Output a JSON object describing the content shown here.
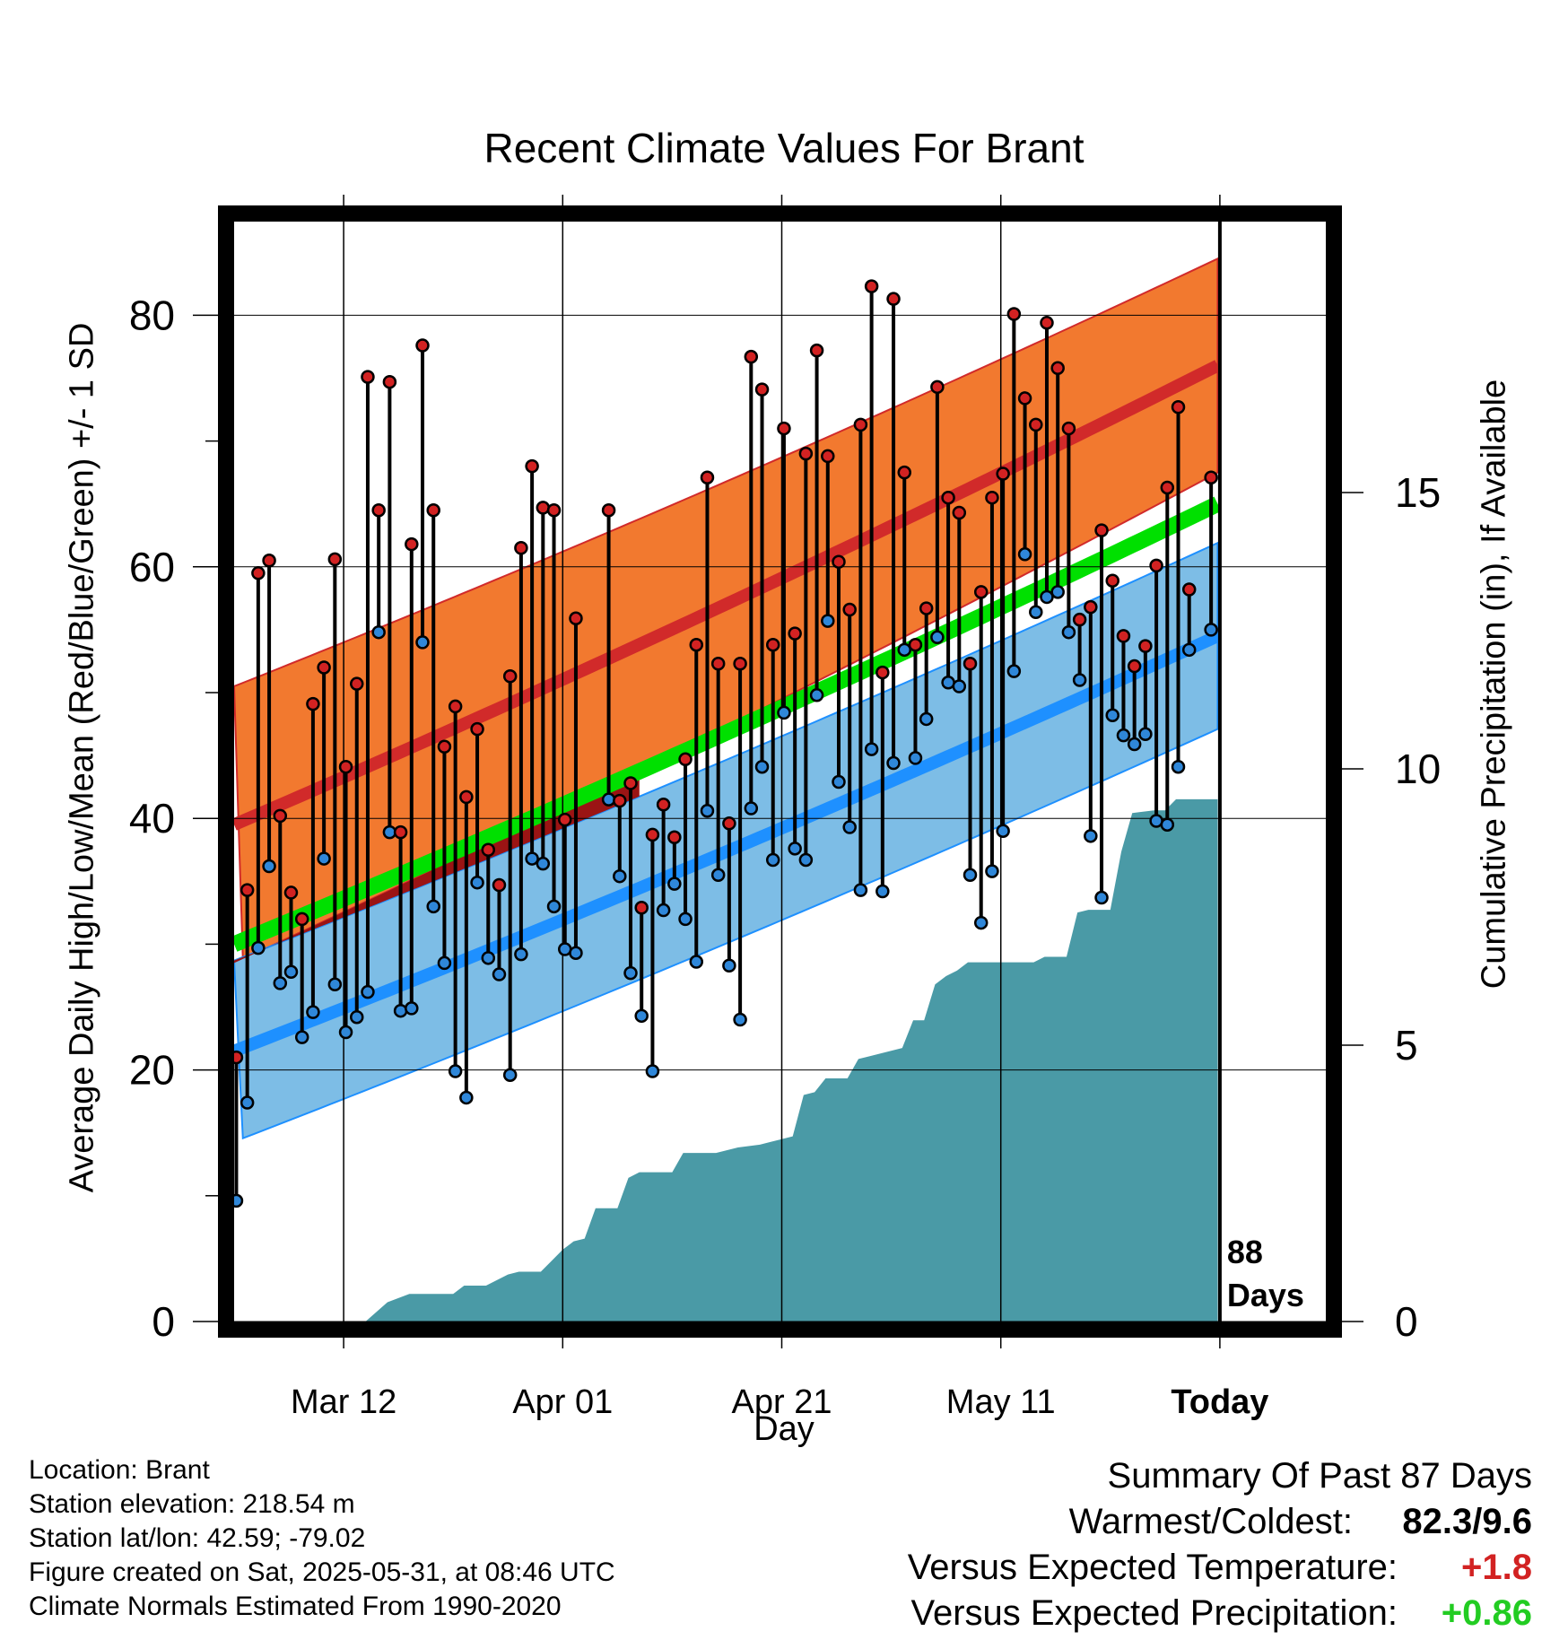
{
  "chart_data": {
    "type": "line",
    "title": "Recent Climate Values For Brant",
    "xlabel": "Day",
    "ylabel": "Average Daily High/Low/Mean (Red/Blue/Green) +/- 1 SD",
    "y2label": "Cumulative Precipitation (in), If Available",
    "x_tick_labels": [
      "Mar 12",
      "Apr 01",
      "Apr 21",
      "May 11",
      "Today"
    ],
    "y_ticks": [
      0,
      20,
      40,
      60,
      80
    ],
    "y2_ticks": [
      0,
      5,
      10,
      15
    ],
    "ylim": [
      0,
      87.5
    ],
    "y2lim": [
      0,
      15
    ],
    "days_annotation": "88\nDays",
    "normals": {
      "high_mean_start": 39.5,
      "high_mean_end": 76,
      "high_sd": 11,
      "low_mean_start": 21.5,
      "low_mean_end": 54.5,
      "low_sd": 7.2,
      "mean_start": 30,
      "mean_end": 65
    },
    "highs": [
      21,
      34.3,
      59.5,
      60.5,
      40.2,
      34.1,
      32,
      49.1,
      52,
      60.6,
      44.1,
      50.7,
      75.1,
      64.5,
      74.7,
      38.9,
      61.8,
      77.6,
      64.5,
      45.7,
      48.9,
      41.7,
      47.1,
      37.5,
      34.7,
      51.3,
      61.5,
      68,
      64.7,
      64.5,
      39.9,
      55.9,
      null,
      null,
      64.5,
      41.4,
      42.8,
      32.9,
      38.7,
      41.1,
      38.5,
      44.7,
      53.8,
      67.1,
      52.3,
      39.6,
      52.3,
      76.7,
      74.1,
      53.8,
      71,
      54.7,
      69,
      77.2,
      68.8,
      60.4,
      56.6,
      71.3,
      82.3,
      51.6,
      81.3,
      67.5,
      53.8,
      56.7,
      74.3,
      65.5,
      64.3,
      52.3,
      58,
      65.5,
      67.4,
      80.1,
      73.4,
      71.3,
      79.4,
      75.8,
      71,
      55.8,
      56.8,
      62.9,
      58.9,
      54.5,
      52.1,
      53.7,
      60.1,
      66.3,
      72.7,
      58.2,
      null,
      67.1
    ],
    "lows": [
      9.6,
      17.4,
      29.7,
      36.2,
      26.9,
      27.8,
      22.6,
      24.6,
      36.8,
      26.8,
      23,
      24.2,
      26.2,
      54.8,
      38.9,
      24.7,
      24.9,
      54,
      33,
      28.5,
      19.9,
      17.8,
      34.9,
      28.9,
      27.6,
      19.6,
      29.2,
      36.8,
      36.4,
      33,
      29.6,
      29.3,
      null,
      null,
      41.5,
      35.4,
      27.7,
      24.3,
      19.9,
      32.7,
      34.8,
      32,
      28.6,
      40.6,
      35.5,
      28.3,
      24,
      40.8,
      44.1,
      36.7,
      48.4,
      37.6,
      36.7,
      49.8,
      55.7,
      42.9,
      39.3,
      34.3,
      45.5,
      34.2,
      44.4,
      53.4,
      44.8,
      47.9,
      54.4,
      50.8,
      50.5,
      35.5,
      31.7,
      35.8,
      39,
      51.7,
      61,
      56.4,
      57.6,
      58,
      54.8,
      51,
      38.6,
      33.7,
      48.2,
      46.6,
      45.9,
      46.7,
      39.8,
      39.5,
      44.1,
      53.4,
      null,
      55
    ]
  },
  "precip_cumulative": [
    [
      0,
      0
    ],
    [
      12,
      0
    ],
    [
      14,
      0.35
    ],
    [
      16,
      0.5
    ],
    [
      18,
      0.5
    ],
    [
      20,
      0.5
    ],
    [
      21,
      0.65
    ],
    [
      23,
      0.65
    ],
    [
      25,
      0.85
    ],
    [
      26,
      0.9
    ],
    [
      28,
      0.9
    ],
    [
      29,
      1.1
    ],
    [
      30,
      1.3
    ],
    [
      31,
      1.45
    ],
    [
      32,
      1.5
    ],
    [
      33,
      2.05
    ],
    [
      34,
      2.05
    ],
    [
      35,
      2.05
    ],
    [
      36,
      2.6
    ],
    [
      37,
      2.7
    ],
    [
      40,
      2.7
    ],
    [
      41,
      3.05
    ],
    [
      44,
      3.05
    ],
    [
      46,
      3.15
    ],
    [
      48,
      3.2
    ],
    [
      49,
      3.25
    ],
    [
      51,
      3.35
    ],
    [
      52,
      4.1
    ],
    [
      53,
      4.15
    ],
    [
      54,
      4.4
    ],
    [
      56,
      4.4
    ],
    [
      57,
      4.75
    ],
    [
      58,
      4.8
    ],
    [
      61,
      4.95
    ],
    [
      62,
      5.45
    ],
    [
      63,
      5.45
    ],
    [
      64,
      6.1
    ],
    [
      65,
      6.25
    ],
    [
      66,
      6.35
    ],
    [
      67,
      6.5
    ],
    [
      73,
      6.5
    ],
    [
      74,
      6.6
    ],
    [
      76,
      6.6
    ],
    [
      77,
      7.4
    ],
    [
      78,
      7.45
    ],
    [
      80,
      7.45
    ],
    [
      81,
      8.5
    ],
    [
      82,
      9.2
    ],
    [
      84,
      9.25
    ],
    [
      85,
      9.25
    ],
    [
      86,
      9.45
    ],
    [
      99,
      9.45
    ]
  ],
  "footer": {
    "location": "Location: Brant",
    "elevation": "Station elevation: 218.54 m",
    "latlon": "Station lat/lon: 42.59; -79.02",
    "created": "Figure created on Sat, 2025-05-31, at 08:46 UTC",
    "normals": "Climate Normals Estimated From 1990-2020"
  },
  "summary": {
    "title": "Summary Of Past 87 Days",
    "warmest_label": "Warmest/Coldest:",
    "warmest_value": "82.3/9.6",
    "temp_label": "Versus Expected Temperature:",
    "temp_value": "+1.8",
    "precip_label": "Versus Expected Precipitation:",
    "precip_value": "+0.86"
  },
  "colors": {
    "high_band": "#f2792f",
    "high_mean": "#d12a2a",
    "low_band": "#7dbde6",
    "low_mean": "#1e90ff",
    "mean": "#00e000",
    "overlap": "#9b1414",
    "precip": "#4a9aa6",
    "high_point": "#d22222",
    "low_point": "#2f87d9",
    "temp_value": "#d22222",
    "precip_value": "#22cc22"
  }
}
